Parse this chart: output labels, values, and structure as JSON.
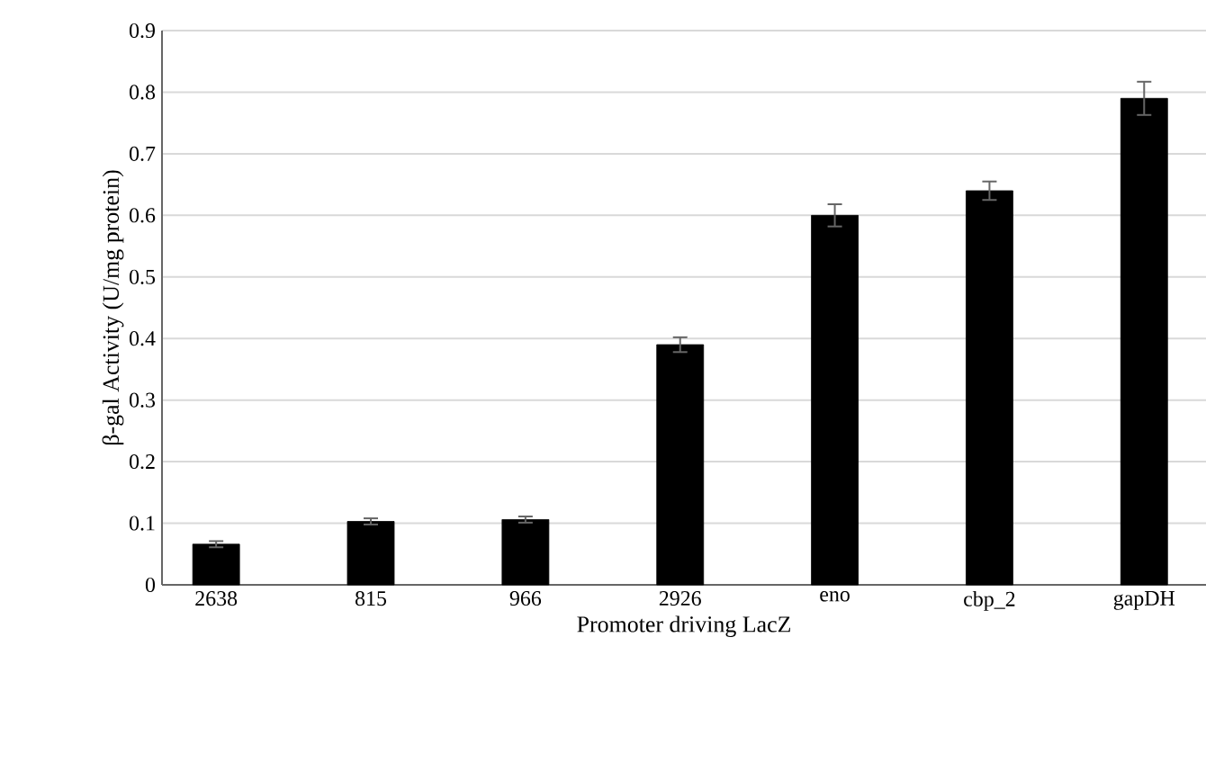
{
  "chart_data": {
    "type": "bar",
    "xlabel": "Promoter driving LacZ",
    "ylabel": "β-gal Activity (U/mg protein)",
    "categories": [
      "2638",
      "815",
      "966",
      "2926",
      "eno",
      "cbp_2",
      "gapDH"
    ],
    "values": [
      0.066,
      0.103,
      0.106,
      0.39,
      0.6,
      0.64,
      0.79
    ],
    "errors": [
      0.005,
      0.005,
      0.005,
      0.012,
      0.018,
      0.015,
      0.027
    ],
    "color": "#000000",
    "ylim": [
      0,
      0.9
    ],
    "yticks": [
      0,
      0.1,
      0.2,
      0.3,
      0.4,
      0.5,
      0.6,
      0.7,
      0.8,
      0.9
    ],
    "grid": "y"
  }
}
